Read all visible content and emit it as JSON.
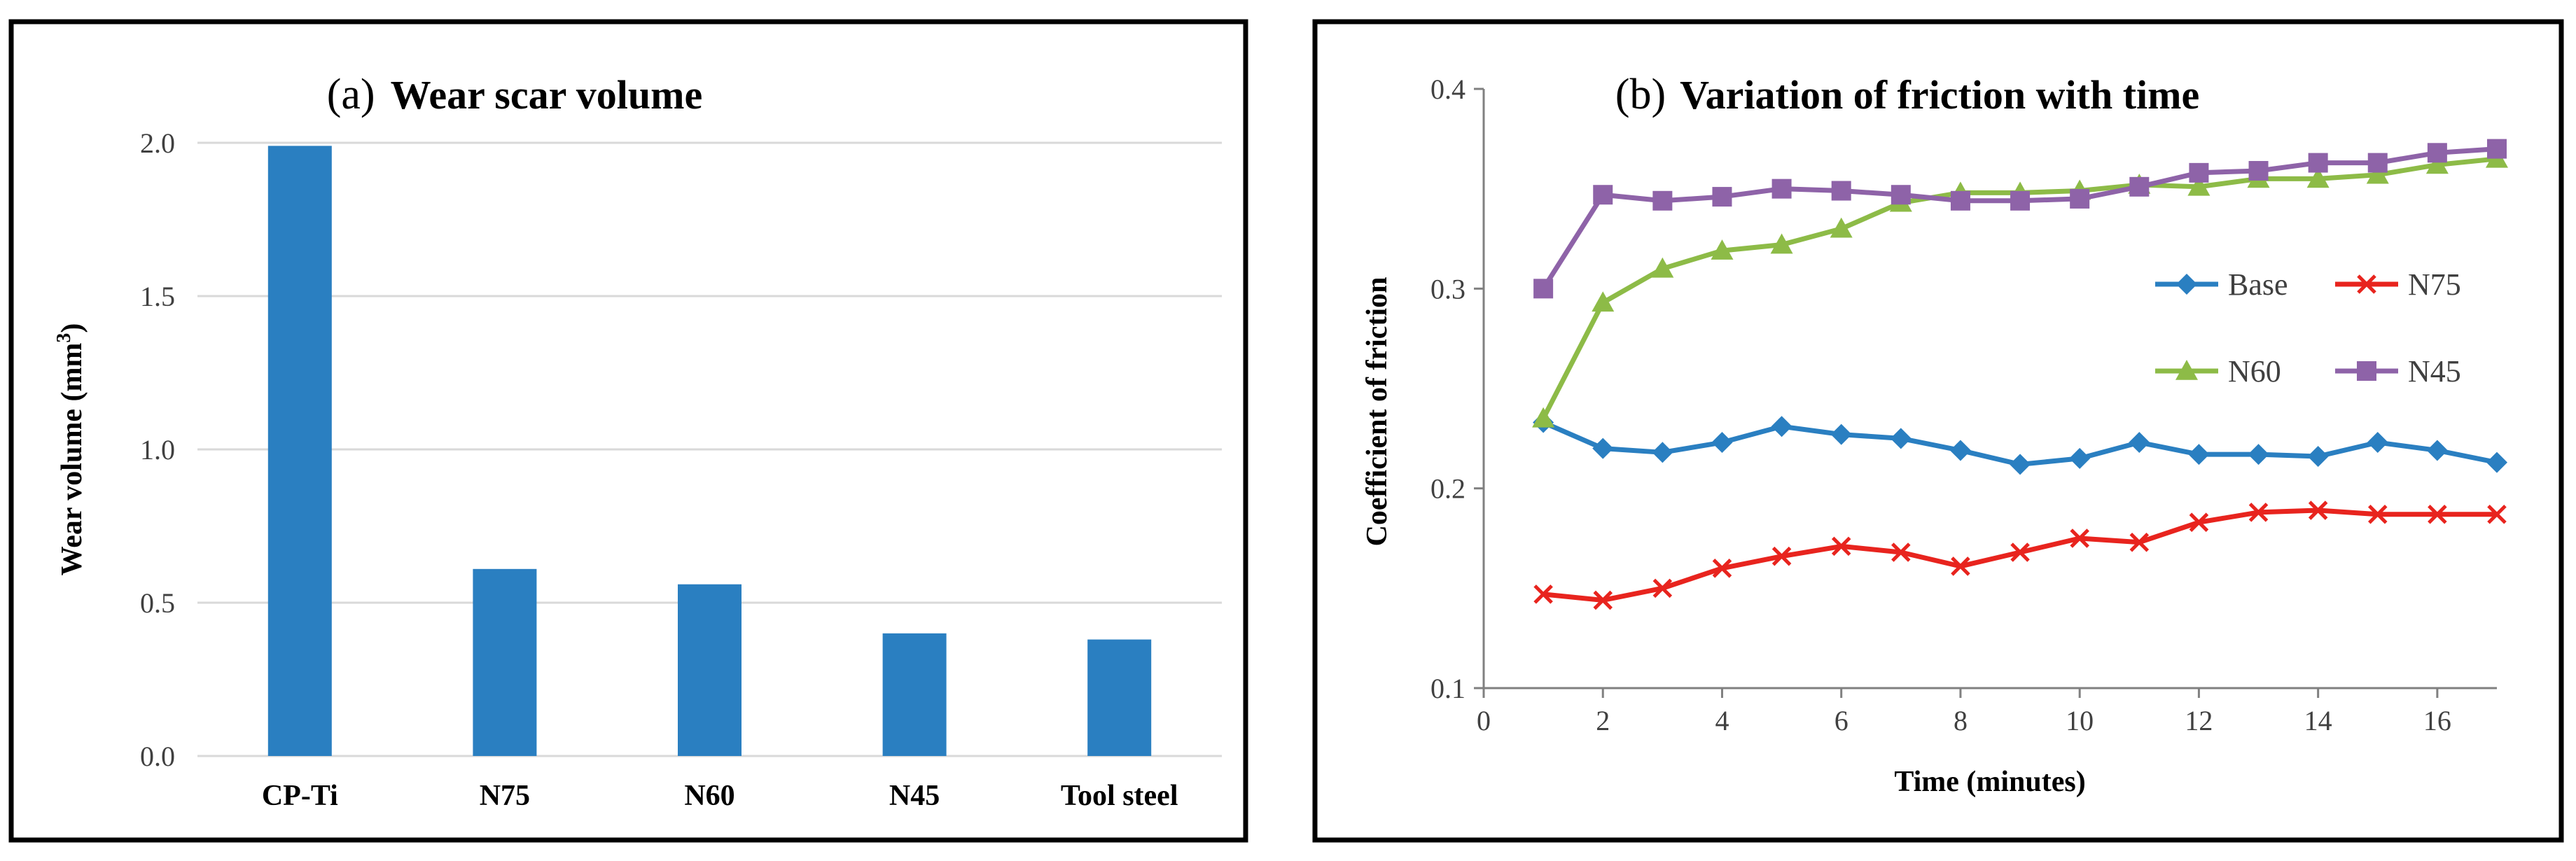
{
  "colors": {
    "bar": "#2A7FC1",
    "base": "#2A7FC1",
    "n75": "#E8241E",
    "n60": "#8DBB47",
    "n45": "#8E63A8",
    "grid": "#D9D9D9",
    "axis": "#808080",
    "frame": "#000000"
  },
  "panel_a": {
    "label": "(a)",
    "title": "Wear scar volume",
    "ylabel_main": "Wear volume (mm",
    "ylabel_sup": "3",
    "ylabel_end": ")"
  },
  "panel_b": {
    "label": "(b)",
    "title": "Variation of friction with time"
  },
  "chart_data": [
    {
      "type": "bar",
      "title": "Wear scar volume",
      "xlabel": "",
      "ylabel": "Wear volume (mm3)",
      "categories": [
        "CP-Ti",
        "N75",
        "N60",
        "N45",
        "Tool steel"
      ],
      "values": [
        1.99,
        0.61,
        0.56,
        0.4,
        0.38
      ],
      "ylim": [
        0.0,
        2.0
      ],
      "yticks": [
        0.0,
        0.5,
        1.0,
        1.5,
        2.0
      ],
      "ytick_labels": [
        "0.0",
        "0.5",
        "1.0",
        "1.5",
        "2.0"
      ],
      "grid": true
    },
    {
      "type": "line",
      "title": "Variation of friction with time",
      "xlabel": "Time (minutes)",
      "ylabel": "Coefficient  of friction",
      "xlim": [
        0,
        17
      ],
      "ylim": [
        0.1,
        0.4
      ],
      "xticks": [
        0,
        2,
        4,
        6,
        8,
        10,
        12,
        14,
        16
      ],
      "xtick_labels": [
        "0",
        "2",
        "4",
        "6",
        "8",
        "10",
        "12",
        "14",
        "16"
      ],
      "yticks": [
        0.1,
        0.2,
        0.3,
        0.4
      ],
      "ytick_labels": [
        "0.1",
        "0.2",
        "0.3",
        "0.4"
      ],
      "grid": false,
      "legend_position": "right",
      "x": [
        1,
        2,
        3,
        4,
        5,
        6,
        7,
        8,
        9,
        10,
        11,
        12,
        13,
        14,
        15,
        16,
        17
      ],
      "series": [
        {
          "name": "Base",
          "marker": "diamond",
          "color": "#2A7FC1",
          "values": [
            0.233,
            0.22,
            0.218,
            0.223,
            0.231,
            0.227,
            0.225,
            0.219,
            0.212,
            0.215,
            0.223,
            0.217,
            0.217,
            0.216,
            0.223,
            0.219,
            0.213
          ]
        },
        {
          "name": "N75",
          "marker": "x",
          "color": "#E8241E",
          "values": [
            0.147,
            0.144,
            0.15,
            0.16,
            0.166,
            0.171,
            0.168,
            0.161,
            0.168,
            0.175,
            0.173,
            0.183,
            0.188,
            0.189,
            0.187,
            0.187,
            0.187
          ]
        },
        {
          "name": "N60",
          "marker": "triangle",
          "color": "#8DBB47",
          "values": [
            0.235,
            0.293,
            0.31,
            0.319,
            0.322,
            0.33,
            0.343,
            0.348,
            0.348,
            0.349,
            0.352,
            0.351,
            0.355,
            0.355,
            0.357,
            0.362,
            0.365
          ]
        },
        {
          "name": "N45",
          "marker": "square",
          "color": "#8E63A8",
          "values": [
            0.3,
            0.347,
            0.344,
            0.346,
            0.35,
            0.349,
            0.347,
            0.344,
            0.344,
            0.345,
            0.351,
            0.358,
            0.359,
            0.363,
            0.363,
            0.368,
            0.37
          ]
        }
      ]
    }
  ]
}
